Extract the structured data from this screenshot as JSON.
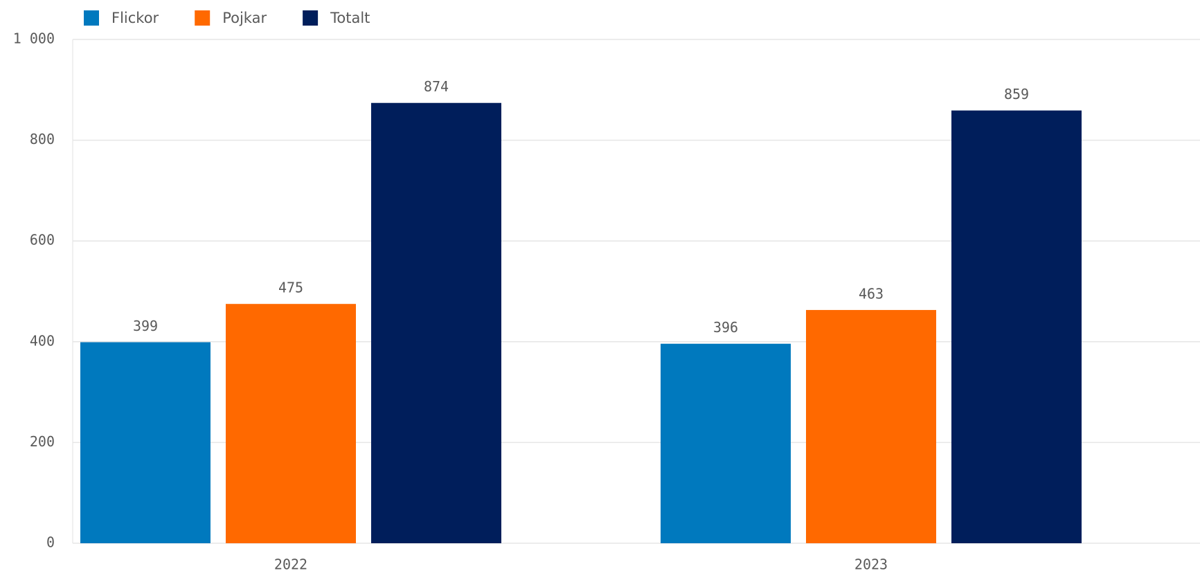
{
  "chart_data": {
    "type": "bar",
    "categories": [
      "2022",
      "2023"
    ],
    "series": [
      {
        "name": "Flickor",
        "color": "#0079be",
        "values": [
          399,
          396
        ]
      },
      {
        "name": "Pojkar",
        "color": "#ff6900",
        "values": [
          475,
          463
        ]
      },
      {
        "name": "Totalt",
        "color": "#001e5b",
        "values": [
          874,
          859
        ]
      }
    ],
    "ylim": [
      0,
      1000
    ],
    "yticks": [
      0,
      200,
      400,
      600,
      800,
      {
        "value": 1000,
        "label": "1 000"
      }
    ],
    "grid": true,
    "legend": "top"
  }
}
